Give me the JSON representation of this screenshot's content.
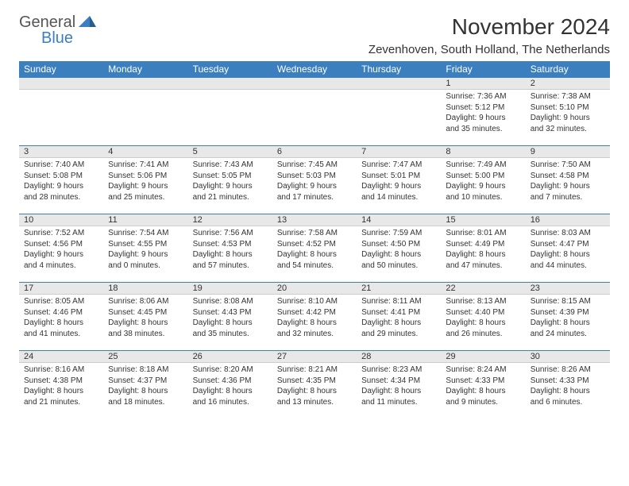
{
  "logo": {
    "top": "General",
    "bottom": "Blue"
  },
  "title": "November 2024",
  "subtitle": "Zevenhoven, South Holland, The Netherlands",
  "colors": {
    "header_bg": "#3b7fbf",
    "header_text": "#ffffff",
    "daynum_bg": "#e8e8e8",
    "border": "#3b7fbf",
    "text": "#333333",
    "logo_gray": "#555555",
    "logo_blue": "#3b7fbf"
  },
  "day_headers": [
    "Sunday",
    "Monday",
    "Tuesday",
    "Wednesday",
    "Thursday",
    "Friday",
    "Saturday"
  ],
  "weeks": [
    [
      null,
      null,
      null,
      null,
      null,
      {
        "n": "1",
        "sr": "7:36 AM",
        "ss": "5:12 PM",
        "dl": "9 hours and 35 minutes."
      },
      {
        "n": "2",
        "sr": "7:38 AM",
        "ss": "5:10 PM",
        "dl": "9 hours and 32 minutes."
      }
    ],
    [
      {
        "n": "3",
        "sr": "7:40 AM",
        "ss": "5:08 PM",
        "dl": "9 hours and 28 minutes."
      },
      {
        "n": "4",
        "sr": "7:41 AM",
        "ss": "5:06 PM",
        "dl": "9 hours and 25 minutes."
      },
      {
        "n": "5",
        "sr": "7:43 AM",
        "ss": "5:05 PM",
        "dl": "9 hours and 21 minutes."
      },
      {
        "n": "6",
        "sr": "7:45 AM",
        "ss": "5:03 PM",
        "dl": "9 hours and 17 minutes."
      },
      {
        "n": "7",
        "sr": "7:47 AM",
        "ss": "5:01 PM",
        "dl": "9 hours and 14 minutes."
      },
      {
        "n": "8",
        "sr": "7:49 AM",
        "ss": "5:00 PM",
        "dl": "9 hours and 10 minutes."
      },
      {
        "n": "9",
        "sr": "7:50 AM",
        "ss": "4:58 PM",
        "dl": "9 hours and 7 minutes."
      }
    ],
    [
      {
        "n": "10",
        "sr": "7:52 AM",
        "ss": "4:56 PM",
        "dl": "9 hours and 4 minutes."
      },
      {
        "n": "11",
        "sr": "7:54 AM",
        "ss": "4:55 PM",
        "dl": "9 hours and 0 minutes."
      },
      {
        "n": "12",
        "sr": "7:56 AM",
        "ss": "4:53 PM",
        "dl": "8 hours and 57 minutes."
      },
      {
        "n": "13",
        "sr": "7:58 AM",
        "ss": "4:52 PM",
        "dl": "8 hours and 54 minutes."
      },
      {
        "n": "14",
        "sr": "7:59 AM",
        "ss": "4:50 PM",
        "dl": "8 hours and 50 minutes."
      },
      {
        "n": "15",
        "sr": "8:01 AM",
        "ss": "4:49 PM",
        "dl": "8 hours and 47 minutes."
      },
      {
        "n": "16",
        "sr": "8:03 AM",
        "ss": "4:47 PM",
        "dl": "8 hours and 44 minutes."
      }
    ],
    [
      {
        "n": "17",
        "sr": "8:05 AM",
        "ss": "4:46 PM",
        "dl": "8 hours and 41 minutes."
      },
      {
        "n": "18",
        "sr": "8:06 AM",
        "ss": "4:45 PM",
        "dl": "8 hours and 38 minutes."
      },
      {
        "n": "19",
        "sr": "8:08 AM",
        "ss": "4:43 PM",
        "dl": "8 hours and 35 minutes."
      },
      {
        "n": "20",
        "sr": "8:10 AM",
        "ss": "4:42 PM",
        "dl": "8 hours and 32 minutes."
      },
      {
        "n": "21",
        "sr": "8:11 AM",
        "ss": "4:41 PM",
        "dl": "8 hours and 29 minutes."
      },
      {
        "n": "22",
        "sr": "8:13 AM",
        "ss": "4:40 PM",
        "dl": "8 hours and 26 minutes."
      },
      {
        "n": "23",
        "sr": "8:15 AM",
        "ss": "4:39 PM",
        "dl": "8 hours and 24 minutes."
      }
    ],
    [
      {
        "n": "24",
        "sr": "8:16 AM",
        "ss": "4:38 PM",
        "dl": "8 hours and 21 minutes."
      },
      {
        "n": "25",
        "sr": "8:18 AM",
        "ss": "4:37 PM",
        "dl": "8 hours and 18 minutes."
      },
      {
        "n": "26",
        "sr": "8:20 AM",
        "ss": "4:36 PM",
        "dl": "8 hours and 16 minutes."
      },
      {
        "n": "27",
        "sr": "8:21 AM",
        "ss": "4:35 PM",
        "dl": "8 hours and 13 minutes."
      },
      {
        "n": "28",
        "sr": "8:23 AM",
        "ss": "4:34 PM",
        "dl": "8 hours and 11 minutes."
      },
      {
        "n": "29",
        "sr": "8:24 AM",
        "ss": "4:33 PM",
        "dl": "8 hours and 9 minutes."
      },
      {
        "n": "30",
        "sr": "8:26 AM",
        "ss": "4:33 PM",
        "dl": "8 hours and 6 minutes."
      }
    ]
  ],
  "labels": {
    "sunrise": "Sunrise:",
    "sunset": "Sunset:",
    "daylight": "Daylight:"
  }
}
